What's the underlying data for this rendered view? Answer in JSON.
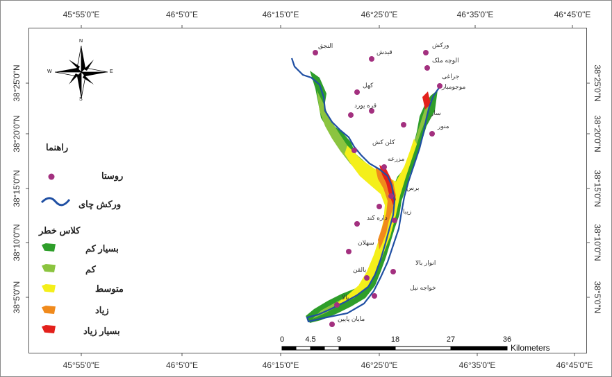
{
  "axes": {
    "top_labels": [
      "45°55'0\"E",
      "46°5'0\"E",
      "46°15'0\"E",
      "46°25'0\"E",
      "46°35'0\"E",
      "46°45'0\"E"
    ],
    "bottom_labels": [
      "45°55'0\"E",
      "46°5'0\"E",
      "46°15'0\"E",
      "46°25'0\"E",
      "46°35'0\"E",
      "46°45'0\"E"
    ],
    "left_labels": [
      "38°25'0\"N",
      "38°20'0\"N",
      "38°15'0\"N",
      "38°10'0\"N",
      "38°5'0\"N"
    ],
    "right_labels": [
      "38°25'0\"N",
      "38°20'0\"N",
      "38°15'0\"N",
      "38°10'0\"N",
      "38°5'0\"N"
    ]
  },
  "compass": {
    "n": "N",
    "s": "S",
    "e": "E",
    "w": "W"
  },
  "legend": {
    "title": "راهنما",
    "village_label": "روستا",
    "river_label": "ورکش چای",
    "risk_title": "کلاس خطر",
    "risk_classes": [
      {
        "label": "بسیار کم",
        "color": "#2e9e2a"
      },
      {
        "label": "کم",
        "color": "#8bc43f"
      },
      {
        "label": "متوسط",
        "color": "#f4ef1a"
      },
      {
        "label": "زیاد",
        "color": "#f08a1c"
      },
      {
        "label": "بسیار زیاد",
        "color": "#e3201b"
      }
    ]
  },
  "villages": [
    "النجق",
    "قیدش",
    "ورکش",
    "الوچه ملک",
    "جراغی",
    "موجومبار",
    "کهل",
    "قره یورد",
    "سار",
    "منور",
    "کلن کش",
    "مزرعه",
    "برس",
    "زیبا",
    "داره کند",
    "سهلان",
    "انوار بالا",
    "بالقن",
    "خواجه نیل",
    "بالا",
    "مایان پایین"
  ],
  "scale": {
    "ticks": [
      "0",
      "4.5",
      "9",
      "18",
      "27",
      "36"
    ],
    "unit": "Kilometers"
  },
  "colors": {
    "village_dot": "#a3307f",
    "river": "#1f4fa3"
  }
}
